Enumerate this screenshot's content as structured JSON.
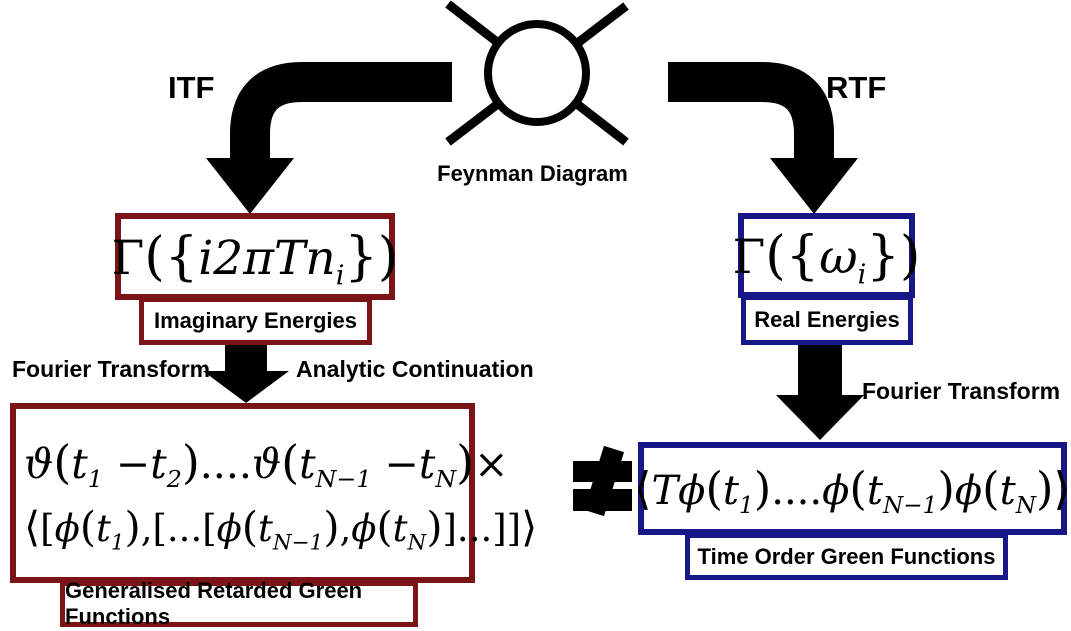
{
  "colors": {
    "dark_red": "#7B1416",
    "navy": "#181788",
    "ink": "#000000"
  },
  "header": {
    "feynman_label": "Feynman Diagram",
    "itf_label": "ITF",
    "rtf_label": "RTF"
  },
  "left_branch": {
    "vertex_formula": [
      [
        "Γ",
        "rm"
      ],
      [
        "({",
        "fence"
      ],
      [
        "i2πTn",
        "it"
      ],
      [
        "i",
        "sub"
      ],
      [
        "})",
        "fence"
      ]
    ],
    "energy_label": "Imaginary Energies",
    "transform_label_left": "Fourier Transform",
    "transform_label_right": "Analytic Continuation",
    "result_line1": [
      [
        "ϑ",
        "it"
      ],
      [
        "(",
        "fence"
      ],
      [
        "t",
        "it"
      ],
      [
        "1",
        "sub"
      ],
      [
        " −",
        "rm"
      ],
      [
        "t",
        "it"
      ],
      [
        "2",
        "sub"
      ],
      [
        ")",
        "fence"
      ],
      [
        "....",
        "rm"
      ],
      [
        "ϑ",
        "it"
      ],
      [
        "(",
        "fence"
      ],
      [
        "t",
        "it"
      ],
      [
        "N−1",
        "sub"
      ],
      [
        " −",
        "rm"
      ],
      [
        "t",
        "it"
      ],
      [
        "N",
        "sub"
      ],
      [
        ")",
        "fence"
      ],
      [
        "×",
        "rm"
      ]
    ],
    "result_line2": [
      [
        "⟨",
        "fence"
      ],
      [
        "[",
        "rm"
      ],
      [
        "ϕ",
        "it"
      ],
      [
        "(",
        "fence"
      ],
      [
        "t",
        "it"
      ],
      [
        "1",
        "sub"
      ],
      [
        ")",
        "fence"
      ],
      [
        ",[...[",
        "rm"
      ],
      [
        "ϕ",
        "it"
      ],
      [
        "(",
        "fence"
      ],
      [
        "t",
        "it"
      ],
      [
        "N−1",
        "sub"
      ],
      [
        ")",
        "fence"
      ],
      [
        ",",
        "rm"
      ],
      [
        "ϕ",
        "it"
      ],
      [
        "(",
        "fence"
      ],
      [
        "t",
        "it"
      ],
      [
        "N",
        "sub"
      ],
      [
        ")",
        "fence"
      ],
      [
        "]...]]",
        "rm"
      ],
      [
        "⟩",
        "fence"
      ]
    ],
    "result_label": "Generalised Retarded Green Functions"
  },
  "right_branch": {
    "vertex_formula": [
      [
        "Γ",
        "rm"
      ],
      [
        "({",
        "fence"
      ],
      [
        "ω",
        "it"
      ],
      [
        "i",
        "sub"
      ],
      [
        "})",
        "fence"
      ]
    ],
    "energy_label": "Real Energies",
    "transform_label": "Fourier Transform",
    "result_formula": [
      [
        "⟨",
        "fence"
      ],
      [
        "Tϕ",
        "it"
      ],
      [
        "(",
        "fence"
      ],
      [
        "t",
        "it"
      ],
      [
        "1",
        "sub"
      ],
      [
        ")",
        "fence"
      ],
      [
        "....",
        "rm"
      ],
      [
        "ϕ",
        "it"
      ],
      [
        "(",
        "fence"
      ],
      [
        "t",
        "it"
      ],
      [
        "N−1",
        "sub"
      ],
      [
        ")",
        "fence"
      ],
      [
        "ϕ",
        "it"
      ],
      [
        "(",
        "fence"
      ],
      [
        "t",
        "it"
      ],
      [
        "N",
        "sub"
      ],
      [
        ")",
        "fence"
      ],
      [
        "⟩",
        "fence"
      ]
    ],
    "result_label": "Time Order Green Functions"
  },
  "relation": {
    "symbol": "≠"
  }
}
